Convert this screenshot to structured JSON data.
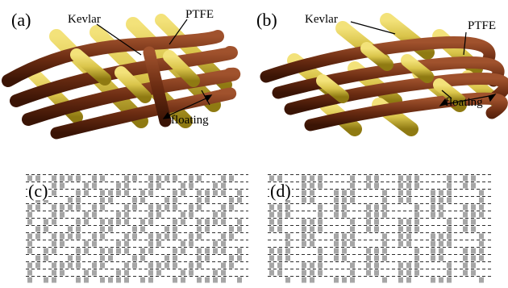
{
  "figure": {
    "panels": [
      {
        "id": "a",
        "label": "(a)",
        "kevlar_label": "Kevlar",
        "ptfe_label": "PTFE",
        "floating_label": "floating"
      },
      {
        "id": "b",
        "label": "(b)",
        "kevlar_label": "Kevlar",
        "ptfe_label": "PTFE",
        "floating_label": "floating"
      },
      {
        "id": "c",
        "label": "(c)"
      },
      {
        "id": "d",
        "label": "(d)"
      }
    ],
    "colors": {
      "kevlar": "#d9c44a",
      "kevlar_dark": "#8f7a12",
      "ptfe": "#6b2c12",
      "ptfe_light": "#a0522d",
      "pattern_gray": "#a6a6a6",
      "pattern_dark": "#303030"
    }
  }
}
